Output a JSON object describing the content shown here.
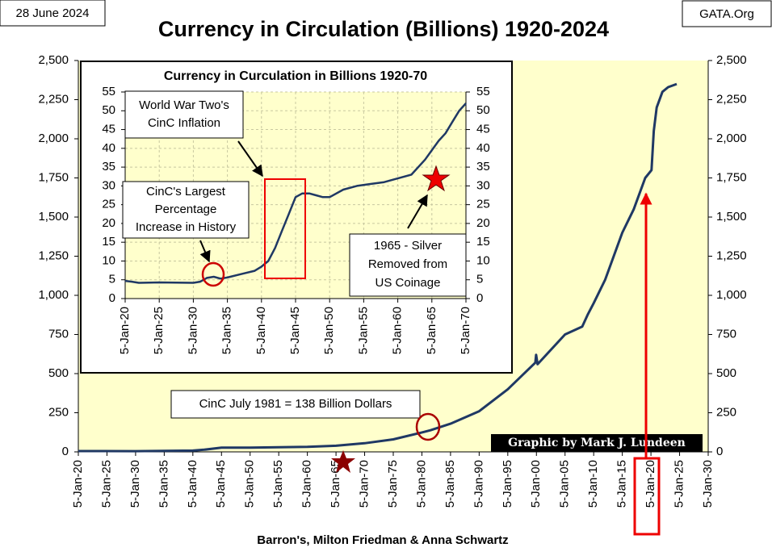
{
  "header": {
    "date": "28 June 2024",
    "site": "GATA.Org",
    "source": "Barron's, Milton Friedman & Anna Schwartz"
  },
  "chart_data": [
    {
      "type": "line",
      "title": "Currency in Circulation (Billions) 1920-2024",
      "color": "#1f3864",
      "grid": false,
      "xlim": [
        1920,
        2030
      ],
      "ylim": [
        0,
        2500
      ],
      "y2lim": [
        0,
        2500
      ],
      "xticks": [
        {
          "value": 1920,
          "label": "5-Jan-20"
        },
        {
          "value": 1925,
          "label": "5-Jan-25"
        },
        {
          "value": 1930,
          "label": "5-Jan-30"
        },
        {
          "value": 1935,
          "label": "5-Jan-35"
        },
        {
          "value": 1940,
          "label": "5-Jan-40"
        },
        {
          "value": 1945,
          "label": "5-Jan-45"
        },
        {
          "value": 1950,
          "label": "5-Jan-50"
        },
        {
          "value": 1955,
          "label": "5-Jan-55"
        },
        {
          "value": 1960,
          "label": "5-Jan-60"
        },
        {
          "value": 1965,
          "label": "5-Jan-65"
        },
        {
          "value": 1970,
          "label": "5-Jan-70"
        },
        {
          "value": 1975,
          "label": "5-Jan-75"
        },
        {
          "value": 1980,
          "label": "5-Jan-80"
        },
        {
          "value": 1985,
          "label": "5-Jan-85"
        },
        {
          "value": 1990,
          "label": "5-Jan-90"
        },
        {
          "value": 1995,
          "label": "5-Jan-95"
        },
        {
          "value": 2000,
          "label": "5-Jan-00"
        },
        {
          "value": 2005,
          "label": "5-Jan-05"
        },
        {
          "value": 2010,
          "label": "5-Jan-10"
        },
        {
          "value": 2015,
          "label": "5-Jan-15"
        },
        {
          "value": 2020,
          "label": "5-Jan-20"
        },
        {
          "value": 2025,
          "label": "5-Jan-25"
        },
        {
          "value": 2030,
          "label": "5-Jan-30"
        }
      ],
      "yticks": [
        0,
        250,
        500,
        750,
        {
          "value": 1000,
          "label": "1,000"
        },
        {
          "value": 1250,
          "label": "1,250"
        },
        {
          "value": 1500,
          "label": "1,500"
        },
        {
          "value": 1750,
          "label": "1,750"
        },
        {
          "value": 2000,
          "label": "2,000"
        },
        {
          "value": 2250,
          "label": "2,250"
        },
        {
          "value": 2500,
          "label": "2,500"
        }
      ],
      "y2ticks": [
        0,
        250,
        500,
        750,
        {
          "value": 1000,
          "label": "1,000"
        },
        {
          "value": 1250,
          "label": "1,250"
        },
        {
          "value": 1500,
          "label": "1,500"
        },
        {
          "value": 1750,
          "label": "1,750"
        },
        {
          "value": 2000,
          "label": "2,000"
        },
        {
          "value": 2250,
          "label": "2,250"
        },
        {
          "value": 2500,
          "label": "2,500"
        }
      ],
      "x": [
        1920,
        1930,
        1940,
        1942,
        1945,
        1950,
        1955,
        1960,
        1965,
        1970,
        1975,
        1980,
        1981.5,
        1985,
        1990,
        1995,
        1999.8,
        1999.95,
        2000.2,
        2005,
        2008,
        2009,
        2010,
        2012,
        2015,
        2017,
        2019,
        2020.1,
        2020.5,
        2021,
        2022,
        2023,
        2024.5
      ],
      "values": [
        5,
        4.5,
        8,
        14,
        27,
        27,
        30,
        32,
        39,
        55,
        80,
        124,
        138,
        180,
        260,
        400,
        570,
        620,
        560,
        750,
        800,
        880,
        950,
        1100,
        1400,
        1550,
        1750,
        1800,
        2050,
        2200,
        2300,
        2330,
        2350
      ],
      "annotation": "CinC July 1981 = 138 Billion Dollars",
      "credit": "Graphic by Mark J. Lundeen"
    },
    {
      "type": "line",
      "title": "Currency in Curculation in Billions 1920-70",
      "color": "#1f3864",
      "grid": true,
      "xlim": [
        1920,
        1970
      ],
      "ylim": [
        0,
        55
      ],
      "y2lim": [
        0,
        55
      ],
      "xticks": [
        {
          "value": 1920,
          "label": "5-Jan-20"
        },
        {
          "value": 1925,
          "label": "5-Jan-25"
        },
        {
          "value": 1930,
          "label": "5-Jan-30"
        },
        {
          "value": 1935,
          "label": "5-Jan-35"
        },
        {
          "value": 1940,
          "label": "5-Jan-40"
        },
        {
          "value": 1945,
          "label": "5-Jan-45"
        },
        {
          "value": 1950,
          "label": "5-Jan-50"
        },
        {
          "value": 1955,
          "label": "5-Jan-55"
        },
        {
          "value": 1960,
          "label": "5-Jan-60"
        },
        {
          "value": 1965,
          "label": "5-Jan-65"
        },
        {
          "value": 1970,
          "label": "5-Jan-70"
        }
      ],
      "yticks": [
        0,
        5,
        10,
        15,
        20,
        25,
        30,
        35,
        40,
        45,
        50,
        55
      ],
      "y2ticks": [
        0,
        5,
        10,
        15,
        20,
        25,
        30,
        35,
        40,
        45,
        50,
        55
      ],
      "x": [
        1920,
        1921,
        1922,
        1925,
        1930,
        1931,
        1932,
        1933,
        1934,
        1935,
        1937,
        1939,
        1940,
        1941,
        1942,
        1943,
        1944,
        1945,
        1946,
        1947,
        1948,
        1949,
        1950,
        1952,
        1954,
        1956,
        1958,
        1960,
        1962,
        1964,
        1965,
        1966,
        1967,
        1968,
        1969,
        1970
      ],
      "values": [
        4.7,
        4.5,
        4.2,
        4.3,
        4.2,
        4.5,
        5.5,
        5.8,
        5.3,
        5.6,
        6.5,
        7.4,
        8.5,
        10,
        13.5,
        18,
        22.5,
        27,
        28,
        28,
        27.5,
        27,
        27,
        29,
        30,
        30.5,
        31,
        32,
        33,
        37,
        39.5,
        42,
        44,
        47,
        50,
        52
      ],
      "annotations": [
        [
          "World War Two's",
          "CinC Inflation"
        ],
        [
          "CinC's Largest",
          "Percentage",
          "Increase in History"
        ],
        [
          "1965 - Silver",
          "Removed from",
          "US Coinage"
        ]
      ]
    }
  ]
}
